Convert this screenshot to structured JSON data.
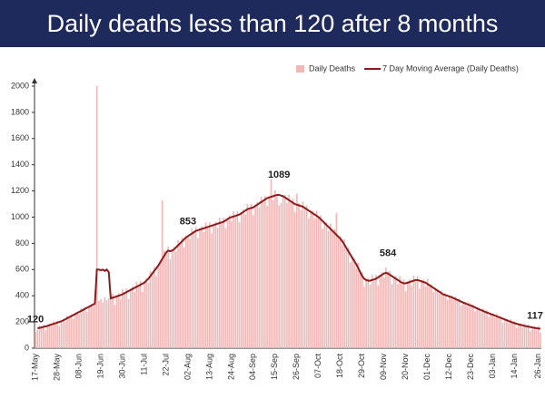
{
  "chart_data": {
    "type": "bar_line",
    "title": "Daily deaths less than 120 after 8 months",
    "categories": [
      "17-May",
      null,
      null,
      null,
      null,
      null,
      null,
      null,
      null,
      null,
      null,
      "28-May",
      null,
      null,
      null,
      null,
      null,
      null,
      null,
      null,
      null,
      null,
      "08-Jun",
      null,
      null,
      null,
      null,
      null,
      null,
      null,
      null,
      null,
      null,
      "19-Jun",
      null,
      null,
      null,
      null,
      null,
      null,
      null,
      null,
      null,
      null,
      "30-Jun",
      null,
      null,
      null,
      null,
      null,
      null,
      null,
      null,
      null,
      null,
      "11-Jul",
      null,
      null,
      null,
      null,
      null,
      null,
      null,
      null,
      null,
      null,
      "22-Jul",
      null,
      null,
      null,
      null,
      null,
      null,
      null,
      null,
      null,
      null,
      "02-Aug",
      null,
      null,
      null,
      null,
      null,
      null,
      null,
      null,
      null,
      null,
      "13-Aug",
      null,
      null,
      null,
      null,
      null,
      null,
      null,
      null,
      null,
      null,
      "24-Aug",
      null,
      null,
      null,
      null,
      null,
      null,
      null,
      null,
      null,
      null,
      "04-Sep",
      null,
      null,
      null,
      null,
      null,
      null,
      null,
      null,
      null,
      null,
      "15-Sep",
      null,
      null,
      null,
      null,
      null,
      null,
      null,
      null,
      null,
      null,
      "26-Sep",
      null,
      null,
      null,
      null,
      null,
      null,
      null,
      null,
      null,
      null,
      "07-Oct",
      null,
      null,
      null,
      null,
      null,
      null,
      null,
      null,
      null,
      null,
      "18-Oct",
      null,
      null,
      null,
      null,
      null,
      null,
      null,
      null,
      null,
      null,
      "29-Oct",
      null,
      null,
      null,
      null,
      null,
      null,
      null,
      null,
      null,
      null,
      "09-Nov",
      null,
      null,
      null,
      null,
      null,
      null,
      null,
      null,
      null,
      null,
      "20-Nov",
      null,
      null,
      null,
      null,
      null,
      null,
      null,
      null,
      null,
      null,
      "01-Dec",
      null,
      null,
      null,
      null,
      null,
      null,
      null,
      null,
      null,
      null,
      "12-Dec",
      null,
      null,
      null,
      null,
      null,
      null,
      null,
      null,
      null,
      null,
      "23-Dec",
      null,
      null,
      null,
      null,
      null,
      null,
      null,
      null,
      null,
      null,
      "03-Jan",
      null,
      null,
      null,
      null,
      null,
      null,
      null,
      null,
      null,
      null,
      "14-Jan",
      null,
      null,
      null,
      null,
      null,
      null,
      null,
      null,
      null,
      null,
      null,
      "26-Jan",
      null
    ],
    "series": [
      {
        "name": "Daily Deaths",
        "type": "bar",
        "color": "#f3b8b8",
        "values": [
          120,
          140,
          175,
          153,
          177,
          136,
          175,
          185,
          165,
          205,
          185,
          210,
          170,
          210,
          222,
          205,
          248,
          231,
          259,
          222,
          265,
          278,
          261,
          304,
          287,
          315,
          278,
          321,
          334,
          317,
          360,
          2003,
          360,
          375,
          350,
          390,
          365,
          380,
          370,
          415,
          330,
          405,
          420,
          375,
          452,
          410,
          458,
          376,
          454,
          472,
          430,
          508,
          466,
          514,
          432,
          510,
          535,
          500,
          590,
          560,
          620,
          550,
          640,
          675,
          1129,
          745,
          720,
          775,
          680,
          755,
          775,
          740,
          825,
          790,
          845,
          770,
          855,
          853,
          835,
          915,
          875,
          925,
          840,
          915,
          930,
          885,
          960,
          915,
          960,
          875,
          950,
          965,
          920,
          995,
          950,
          995,
          915,
          995,
          1015,
          970,
          1045,
          1000,
          1045,
          960,
          1040,
          1060,
          1020,
          1100,
          1055,
          1100,
          1015,
          1095,
          1115,
          1075,
          1155,
          1115,
          1165,
          1085,
          1160,
          1290,
          1130,
          1205,
          1160,
          1089,
          1105,
          1170,
          1170,
          1110,
          1170,
          1110,
          1140,
          1040,
          1180,
          1110,
          1055,
          1120,
          1060,
          1090,
          990,
          1050,
          1050,
          990,
          1050,
          990,
          1015,
          910,
          965,
          960,
          895,
          950,
          885,
          910,
          1033,
          860,
          855,
          785,
          830,
          755,
          770,
          655,
          700,
          685,
          610,
          650,
          570,
          580,
          470,
          530,
          535,
          485,
          560,
          515,
          560,
          480,
          560,
          580,
          540,
          615,
          584,
          590,
          490,
          550,
          550,
          490,
          550,
          490,
          525,
          435,
          510,
          525,
          480,
          555,
          510,
          550,
          455,
          520,
          525,
          470,
          530,
          470,
          485,
          430,
          455,
          450,
          415,
          440,
          405,
          420,
          370,
          400,
          400,
          368,
          396,
          364,
          377,
          325,
          353,
          352,
          321,
          350,
          320,
          333,
          281,
          309,
          307,
          275,
          304,
          273,
          287,
          236,
          265,
          265,
          234,
          263,
          232,
          246,
          195,
          224,
          223,
          192,
          221,
          191,
          206,
          156,
          187,
          188,
          159,
          190,
          162,
          179,
          131,
          163,
          165,
          137,
          170,
          117
        ]
      },
      {
        "name": "7 Day Moving Average (Daily Deaths)",
        "type": "line",
        "color": "#8e1b1b",
        "values": [
          null,
          152,
          155,
          158,
          162,
          166,
          170,
          175,
          180,
          185,
          190,
          195,
          200,
          205,
          212,
          220,
          228,
          236,
          244,
          252,
          260,
          268,
          276,
          284,
          292,
          300,
          308,
          316,
          324,
          332,
          340,
          600,
          600,
          595,
          600,
          590,
          600,
          580,
          380,
          385,
          390,
          395,
          400,
          405,
          412,
          420,
          428,
          436,
          444,
          452,
          460,
          468,
          476,
          484,
          492,
          500,
          515,
          530,
          550,
          570,
          590,
          610,
          630,
          655,
          680,
          705,
          730,
          745,
          740,
          745,
          755,
          770,
          785,
          800,
          815,
          830,
          845,
          855,
          865,
          875,
          885,
          895,
          900,
          905,
          910,
          915,
          920,
          925,
          930,
          935,
          940,
          945,
          950,
          955,
          960,
          965,
          975,
          985,
          995,
          1000,
          1005,
          1010,
          1015,
          1020,
          1030,
          1040,
          1050,
          1060,
          1065,
          1070,
          1075,
          1085,
          1095,
          1105,
          1115,
          1125,
          1135,
          1145,
          1150,
          1155,
          1160,
          1165,
          1170,
          1170,
          1165,
          1160,
          1150,
          1140,
          1130,
          1120,
          1110,
          1100,
          1095,
          1090,
          1085,
          1080,
          1070,
          1060,
          1050,
          1040,
          1030,
          1020,
          1010,
          1000,
          985,
          970,
          955,
          940,
          925,
          910,
          895,
          880,
          865,
          850,
          835,
          815,
          790,
          765,
          740,
          715,
          690,
          665,
          640,
          610,
          580,
          550,
          530,
          520,
          515,
          515,
          520,
          525,
          530,
          540,
          550,
          560,
          570,
          575,
          570,
          560,
          550,
          540,
          530,
          520,
          510,
          500,
          495,
          495,
          500,
          505,
          510,
          515,
          520,
          520,
          515,
          510,
          505,
          500,
          490,
          480,
          470,
          460,
          450,
          440,
          430,
          420,
          410,
          405,
          400,
          395,
          390,
          383,
          376,
          369,
          362,
          355,
          348,
          342,
          336,
          330,
          325,
          318,
          311,
          304,
          297,
          290,
          284,
          278,
          272,
          266,
          260,
          255,
          249,
          243,
          237,
          231,
          225,
          219,
          213,
          207,
          201,
          196,
          191,
          186,
          182,
          178,
          174,
          170,
          167,
          164,
          161,
          158,
          155,
          152,
          150,
          148
        ]
      }
    ],
    "ylim": [
      0,
      2000
    ],
    "yticks": [
      0,
      200,
      400,
      600,
      800,
      1000,
      1200,
      1400,
      1600,
      1800,
      2000
    ],
    "grid": false,
    "legend": "top-right"
  }
}
